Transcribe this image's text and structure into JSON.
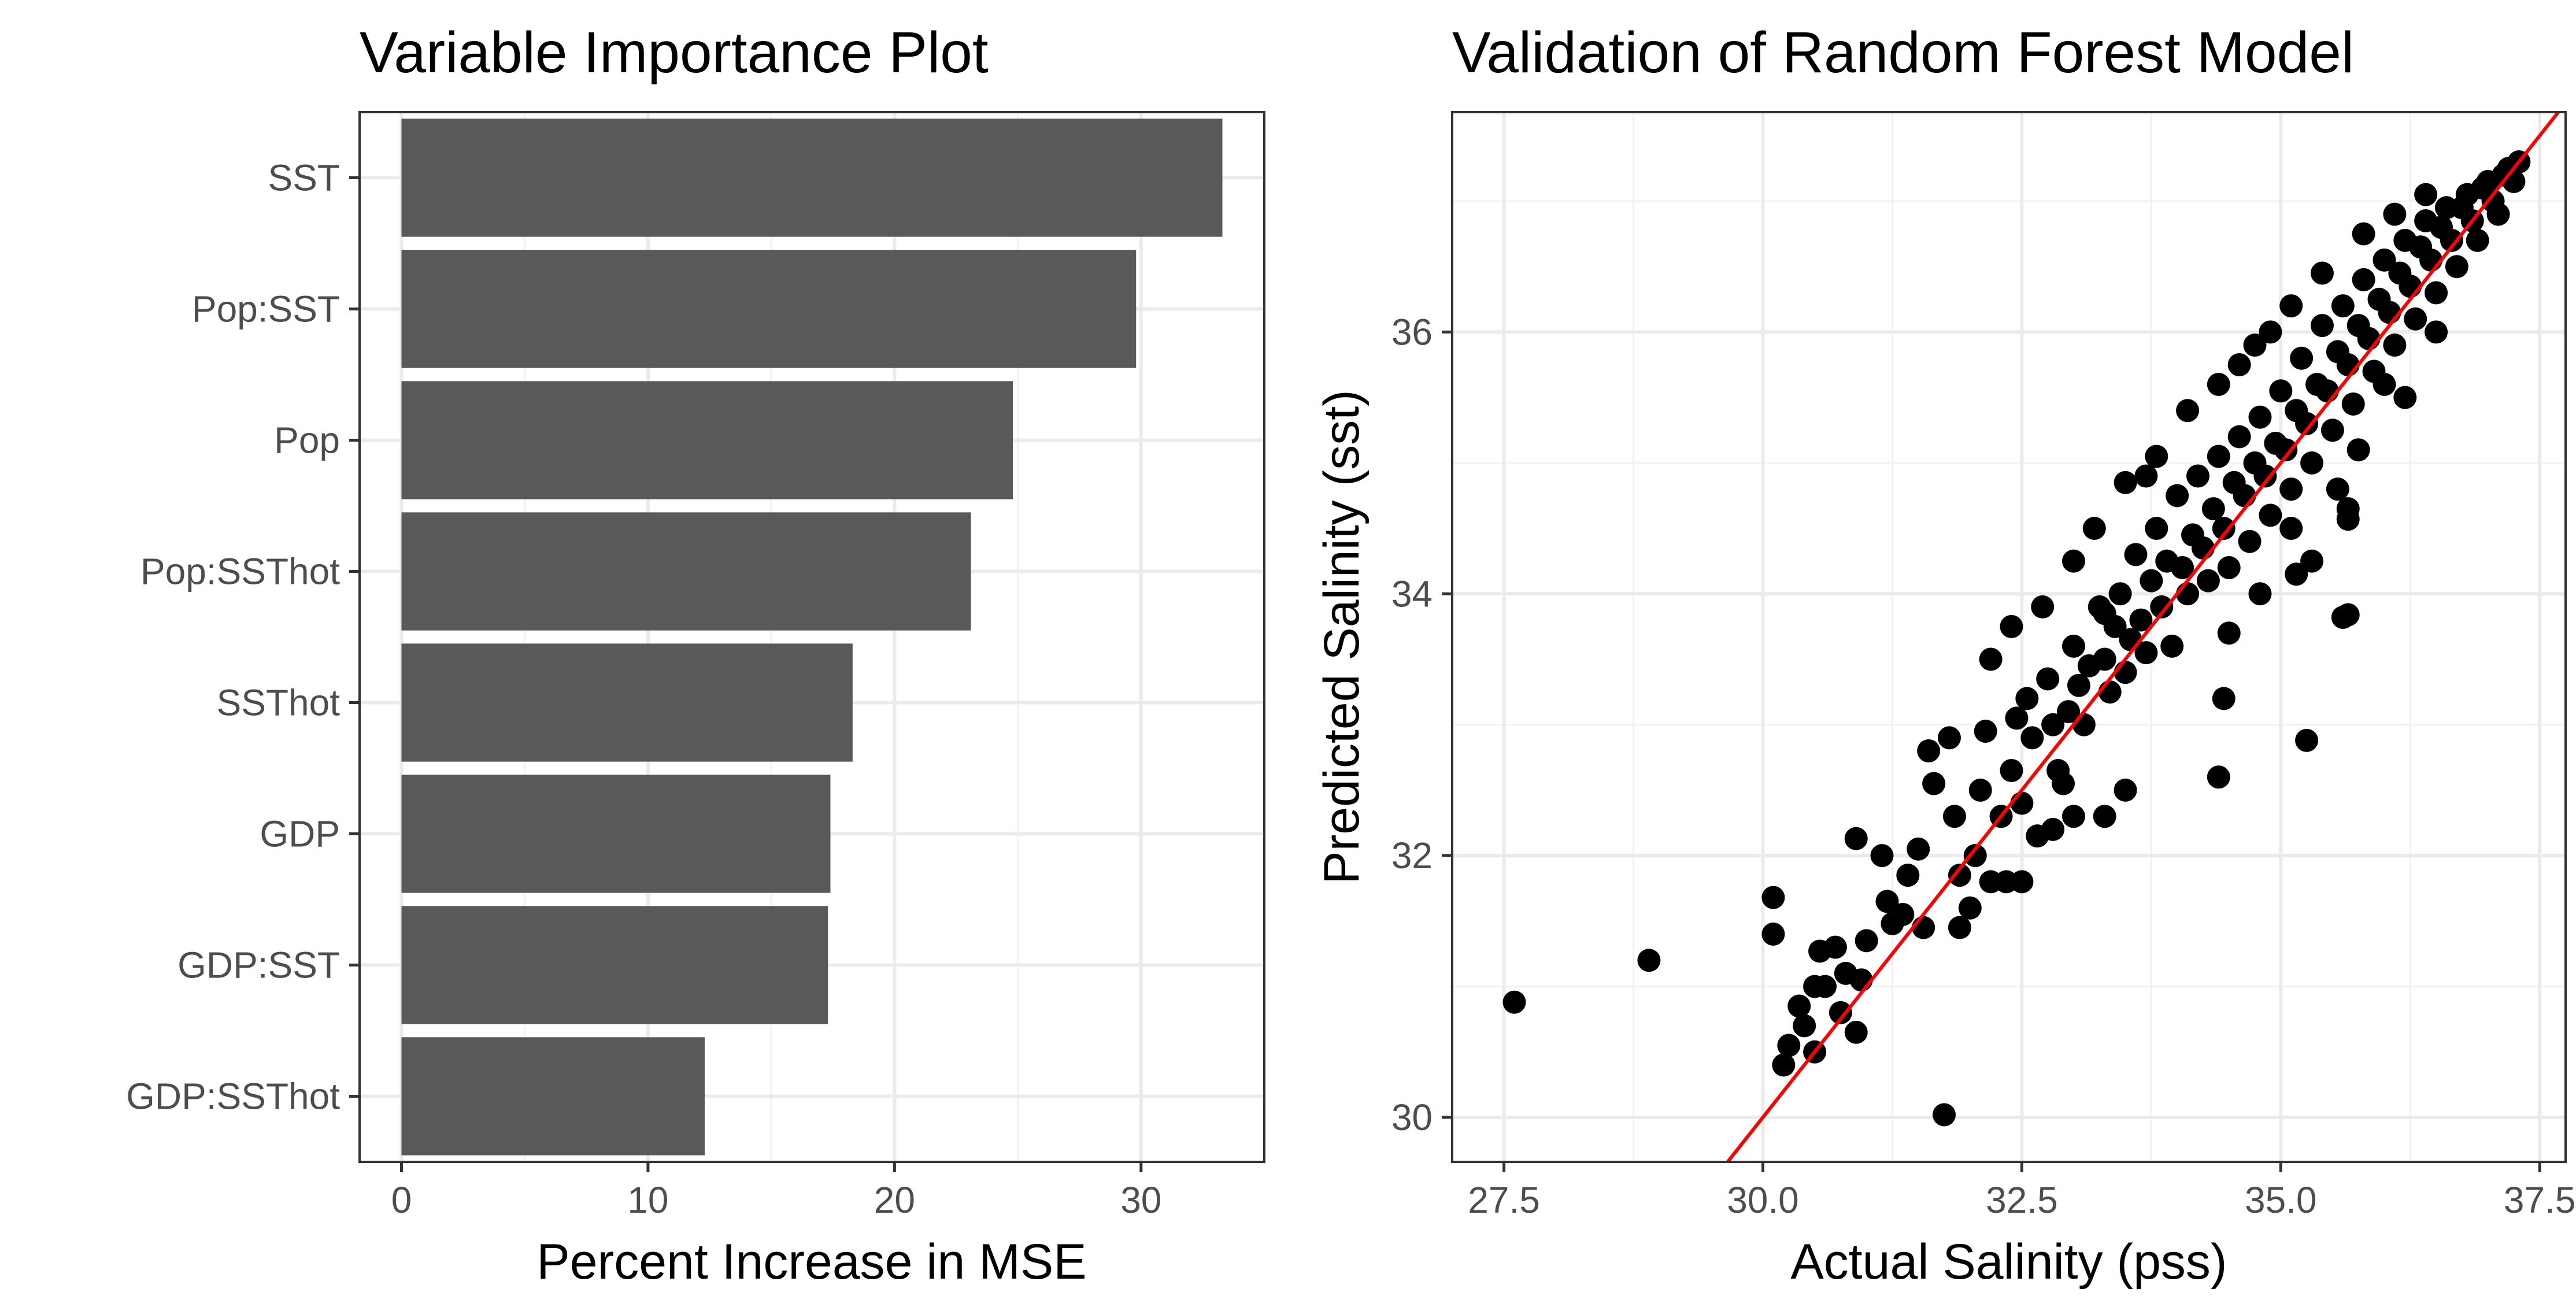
{
  "chart_data": [
    {
      "type": "bar",
      "orientation": "horizontal",
      "title": "Variable Importance Plot",
      "xlabel": "Percent Increase in MSE",
      "ylabel": "",
      "categories": [
        "SST",
        "Pop:SST",
        "Pop",
        "Pop:SSThot",
        "SSThot",
        "GDP",
        "GDP:SST",
        "GDP:SSThot"
      ],
      "values": [
        33.3,
        29.8,
        24.8,
        23.1,
        18.3,
        17.4,
        17.3,
        12.3
      ],
      "xlim": [
        -1.7,
        35
      ],
      "xticks": [
        0,
        10,
        20,
        30
      ],
      "xtick_labels": [
        "0",
        "10",
        "20",
        "30"
      ],
      "grid": true,
      "bar_color": "#595959"
    },
    {
      "type": "scatter",
      "title": "Validation of Random Forest Model",
      "xlabel": "Actual Salinity (pss)",
      "ylabel": "Predicted Salinity (sst)",
      "xlim": [
        27.0,
        37.75
      ],
      "ylim": [
        29.66,
        37.68
      ],
      "xticks": [
        27.5,
        30.0,
        32.5,
        35.0,
        37.5
      ],
      "xtick_labels": [
        "27.5",
        "30.0",
        "32.5",
        "35.0",
        "37.5"
      ],
      "yticks": [
        30,
        32,
        34,
        36
      ],
      "ytick_labels": [
        "30",
        "32",
        "34",
        "36"
      ],
      "grid": true,
      "point_color": "#000000",
      "reference_line": {
        "slope": 1,
        "intercept": 0,
        "color": "#ff0000"
      },
      "points": [
        [
          27.6,
          30.88
        ],
        [
          28.9,
          31.2
        ],
        [
          30.1,
          31.68
        ],
        [
          30.1,
          31.4
        ],
        [
          30.2,
          30.4
        ],
        [
          30.25,
          30.55
        ],
        [
          30.35,
          30.85
        ],
        [
          30.4,
          30.7
        ],
        [
          30.5,
          30.5
        ],
        [
          30.5,
          31.0
        ],
        [
          30.55,
          31.27
        ],
        [
          30.6,
          31.0
        ],
        [
          30.7,
          31.3
        ],
        [
          30.75,
          30.8
        ],
        [
          30.8,
          31.1
        ],
        [
          30.9,
          30.65
        ],
        [
          30.95,
          31.05
        ],
        [
          31.0,
          31.35
        ],
        [
          30.9,
          32.13
        ],
        [
          31.15,
          32.0
        ],
        [
          31.25,
          31.48
        ],
        [
          31.2,
          31.65
        ],
        [
          31.35,
          31.55
        ],
        [
          31.4,
          31.85
        ],
        [
          31.5,
          32.05
        ],
        [
          31.55,
          31.45
        ],
        [
          31.6,
          32.8
        ],
        [
          31.75,
          30.02
        ],
        [
          31.65,
          32.55
        ],
        [
          31.8,
          32.9
        ],
        [
          31.85,
          32.3
        ],
        [
          31.9,
          31.85
        ],
        [
          32.0,
          31.6
        ],
        [
          32.05,
          32.0
        ],
        [
          32.1,
          32.5
        ],
        [
          32.15,
          32.95
        ],
        [
          32.2,
          31.8
        ],
        [
          32.3,
          32.3
        ],
        [
          32.35,
          31.8
        ],
        [
          32.4,
          32.65
        ],
        [
          32.45,
          33.05
        ],
        [
          32.5,
          32.4
        ],
        [
          32.55,
          33.2
        ],
        [
          32.6,
          32.9
        ],
        [
          32.65,
          32.15
        ],
        [
          32.75,
          33.35
        ],
        [
          32.8,
          33.0
        ],
        [
          32.85,
          32.65
        ],
        [
          32.9,
          32.55
        ],
        [
          32.95,
          33.1
        ],
        [
          33.0,
          33.6
        ],
        [
          33.05,
          33.3
        ],
        [
          33.1,
          33.0
        ],
        [
          33.15,
          33.45
        ],
        [
          33.25,
          33.9
        ],
        [
          33.3,
          33.5
        ],
        [
          33.35,
          33.25
        ],
        [
          33.4,
          33.75
        ],
        [
          33.45,
          34.0
        ],
        [
          33.5,
          33.4
        ],
        [
          33.55,
          33.65
        ],
        [
          33.6,
          34.3
        ],
        [
          33.65,
          33.8
        ],
        [
          33.7,
          33.55
        ],
        [
          33.75,
          34.1
        ],
        [
          33.8,
          34.5
        ],
        [
          33.85,
          33.9
        ],
        [
          33.9,
          34.25
        ],
        [
          33.95,
          33.6
        ],
        [
          34.0,
          34.75
        ],
        [
          34.05,
          34.2
        ],
        [
          34.1,
          34.0
        ],
        [
          34.15,
          34.45
        ],
        [
          34.2,
          34.9
        ],
        [
          34.25,
          34.35
        ],
        [
          34.3,
          34.1
        ],
        [
          34.35,
          34.65
        ],
        [
          34.4,
          35.05
        ],
        [
          34.45,
          34.5
        ],
        [
          34.5,
          34.2
        ],
        [
          34.55,
          34.85
        ],
        [
          34.6,
          35.2
        ],
        [
          34.65,
          34.75
        ],
        [
          34.7,
          34.4
        ],
        [
          34.75,
          35.0
        ],
        [
          34.8,
          35.35
        ],
        [
          34.85,
          34.9
        ],
        [
          34.9,
          34.6
        ],
        [
          34.95,
          35.15
        ],
        [
          35.0,
          35.55
        ],
        [
          35.05,
          35.1
        ],
        [
          35.1,
          34.8
        ],
        [
          35.15,
          35.4
        ],
        [
          35.2,
          35.8
        ],
        [
          35.25,
          35.3
        ],
        [
          35.3,
          35.0
        ],
        [
          35.35,
          35.6
        ],
        [
          35.4,
          36.05
        ],
        [
          35.45,
          35.55
        ],
        [
          35.5,
          35.25
        ],
        [
          35.55,
          35.85
        ],
        [
          35.6,
          36.2
        ],
        [
          35.65,
          35.75
        ],
        [
          35.7,
          35.45
        ],
        [
          35.75,
          36.05
        ],
        [
          35.8,
          36.4
        ],
        [
          35.85,
          35.95
        ],
        [
          35.9,
          35.7
        ],
        [
          35.95,
          36.25
        ],
        [
          36.0,
          36.55
        ],
        [
          36.05,
          36.15
        ],
        [
          36.1,
          35.9
        ],
        [
          36.15,
          36.45
        ],
        [
          36.2,
          36.7
        ],
        [
          36.25,
          36.35
        ],
        [
          36.3,
          36.1
        ],
        [
          36.35,
          36.65
        ],
        [
          36.4,
          36.85
        ],
        [
          36.45,
          36.55
        ],
        [
          36.5,
          36.3
        ],
        [
          36.55,
          36.8
        ],
        [
          36.6,
          36.95
        ],
        [
          36.65,
          36.7
        ],
        [
          36.7,
          36.5
        ],
        [
          36.75,
          36.95
        ],
        [
          36.8,
          37.05
        ],
        [
          36.85,
          36.85
        ],
        [
          36.9,
          36.7
        ],
        [
          36.95,
          37.1
        ],
        [
          37.0,
          37.15
        ],
        [
          37.05,
          37.0
        ],
        [
          37.1,
          36.9
        ],
        [
          37.15,
          37.2
        ],
        [
          37.2,
          37.25
        ],
        [
          37.25,
          37.15
        ],
        [
          37.3,
          37.3
        ],
        [
          33.3,
          33.85
        ],
        [
          34.45,
          33.2
        ],
        [
          34.4,
          32.6
        ],
        [
          35.25,
          32.88
        ],
        [
          35.3,
          34.25
        ],
        [
          35.15,
          34.15
        ],
        [
          35.65,
          34.65
        ],
        [
          35.65,
          34.57
        ],
        [
          35.6,
          33.82
        ],
        [
          35.65,
          33.84
        ],
        [
          35.75,
          35.1
        ],
        [
          35.55,
          34.8
        ],
        [
          35.1,
          34.5
        ],
        [
          34.8,
          34.0
        ],
        [
          34.5,
          33.7
        ],
        [
          36.2,
          35.5
        ],
        [
          36.5,
          36.0
        ],
        [
          36.0,
          35.6
        ],
        [
          33.5,
          32.5
        ],
        [
          33.3,
          32.3
        ],
        [
          33.0,
          32.3
        ],
        [
          32.8,
          32.2
        ],
        [
          32.5,
          31.8
        ],
        [
          31.9,
          31.45
        ],
        [
          32.2,
          33.5
        ],
        [
          32.4,
          33.75
        ],
        [
          32.7,
          33.9
        ],
        [
          33.0,
          34.25
        ],
        [
          33.2,
          34.5
        ],
        [
          33.5,
          34.85
        ],
        [
          33.8,
          35.05
        ],
        [
          34.1,
          35.4
        ],
        [
          34.4,
          35.6
        ],
        [
          34.75,
          35.9
        ],
        [
          35.1,
          36.2
        ],
        [
          35.4,
          36.45
        ],
        [
          35.8,
          36.75
        ],
        [
          36.1,
          36.9
        ],
        [
          36.4,
          37.05
        ],
        [
          34.6,
          35.75
        ],
        [
          33.7,
          34.9
        ],
        [
          34.9,
          36.0
        ]
      ]
    }
  ]
}
